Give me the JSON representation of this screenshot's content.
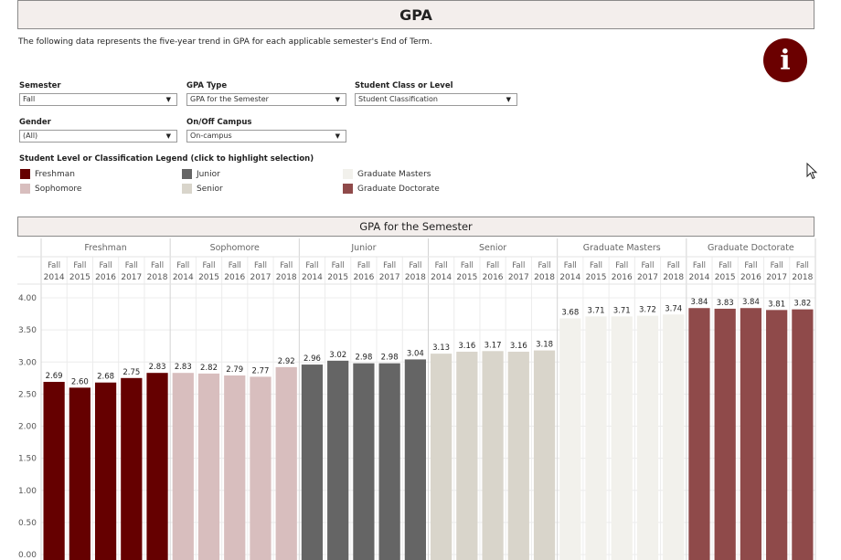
{
  "header": {
    "title": "GPA"
  },
  "description": "The following data represents the five-year trend in GPA for each applicable semester's End of Term.",
  "filters": [
    {
      "id": "semester",
      "label": "Semester",
      "value": "Fall"
    },
    {
      "id": "gpa-type",
      "label": "GPA Type",
      "value": "GPA for the Semester"
    },
    {
      "id": "student-class",
      "label": "Student Class or Level",
      "value": "Student Classification"
    },
    {
      "id": "gender",
      "label": "Gender",
      "value": "(All)"
    },
    {
      "id": "campus",
      "label": "On/Off Campus",
      "value": "On-campus"
    }
  ],
  "legend": {
    "title": "Student Level or Classification Legend (click to highlight selection)",
    "items": [
      {
        "label": "Freshman",
        "color": "#650000"
      },
      {
        "label": "Junior",
        "color": "#656565"
      },
      {
        "label": "Graduate Masters",
        "color": "#f2f1ec"
      },
      {
        "label": "Sophomore",
        "color": "#d8bebe"
      },
      {
        "label": "Senior",
        "color": "#d9d5cb"
      },
      {
        "label": "Graduate Doctorate",
        "color": "#8f4a4a"
      }
    ]
  },
  "icons": {
    "info": "info-icon",
    "cursor": "mouse-pointer-icon",
    "dropdown": "dropdown-arrow-icon"
  },
  "chart_data": {
    "type": "bar",
    "title": "GPA for the Semester",
    "groups": [
      "Freshman",
      "Sophomore",
      "Junior",
      "Senior",
      "Graduate Masters",
      "Graduate Doctorate"
    ],
    "colors": [
      "#650000",
      "#d8bebe",
      "#656565",
      "#d9d5cb",
      "#f2f1ec",
      "#8f4a4a"
    ],
    "categories": [
      [
        "Fall",
        "2014"
      ],
      [
        "Fall",
        "2015"
      ],
      [
        "Fall",
        "2016"
      ],
      [
        "Fall",
        "2017"
      ],
      [
        "Fall",
        "2018"
      ]
    ],
    "values": [
      [
        2.69,
        2.6,
        2.68,
        2.75,
        2.83
      ],
      [
        2.83,
        2.82,
        2.79,
        2.77,
        2.92
      ],
      [
        2.96,
        3.02,
        2.98,
        2.98,
        3.04
      ],
      [
        3.13,
        3.16,
        3.17,
        3.16,
        3.18
      ],
      [
        3.68,
        3.71,
        3.71,
        3.72,
        3.74
      ],
      [
        3.84,
        3.83,
        3.84,
        3.81,
        3.82
      ]
    ],
    "yticks": [
      "0.00",
      "0.50",
      "1.00",
      "1.50",
      "2.00",
      "2.50",
      "3.00",
      "3.50",
      "4.00"
    ],
    "ylim": [
      0,
      4.0
    ],
    "grid": true
  }
}
